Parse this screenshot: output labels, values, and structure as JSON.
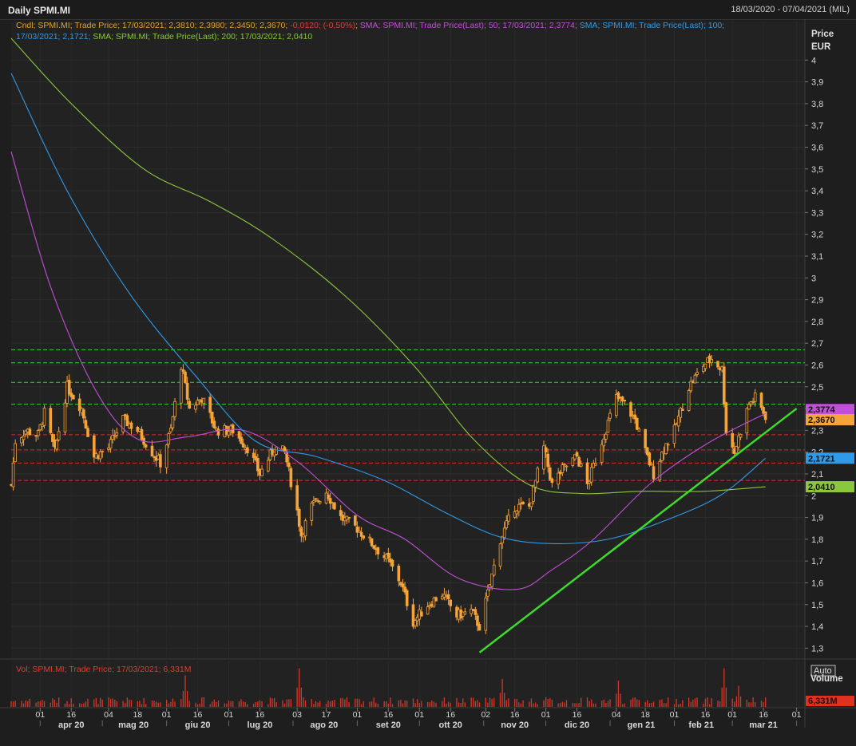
{
  "window": {
    "title": "Daily SPMI.MI",
    "date_range": "18/03/2020 - 07/04/2021 (MIL)"
  },
  "legend": {
    "line1": [
      {
        "text": "Cndl; SPMI.MI; Trade Price;  17/03/2021; 2,3810; 2,3980; 2,3450; 2,3670; ",
        "color": "#e0a030"
      },
      {
        "text": "-0,0120; (-0,50%)",
        "color": "#e03c31"
      },
      {
        "text": "; ",
        "color": "#e0a030"
      },
      {
        "text": "SMA; SPMI.MI; Trade Price(Last);  50;  17/03/2021; 2,3774; ",
        "color": "#c24fd8"
      },
      {
        "text": "SMA; SPMI.MI; Trade Price(Last);  100;",
        "color": "#2f9ae8"
      }
    ],
    "line2": [
      {
        "text": "17/03/2021; 2,1721; ",
        "color": "#2f9ae8"
      },
      {
        "text": "SMA; SPMI.MI; Trade Price(Last);  200;  17/03/2021; 2,0410",
        "color": "#8bc63f"
      }
    ],
    "volume": "Vol; SPMI.MI; Trade Price;  17/03/2021; 6,331M"
  },
  "colors": {
    "candle": "#f5a43a",
    "sma50": "#c24fd8",
    "sma100": "#2f9ae8",
    "sma200": "#8bc63f",
    "trendline": "#3ddc2a",
    "support": "#d03030",
    "resistance": "#3ccf3c",
    "volume": "#d03a2a"
  },
  "chart_data": {
    "type": "line",
    "subtype": "candlestick",
    "price_axis": {
      "label": "Price",
      "unit": "EUR",
      "ylim": [
        1.25,
        4.1
      ],
      "ticks": [
        "1,3",
        "1,4",
        "1,5",
        "1,6",
        "1,7",
        "1,8",
        "1,9",
        "2",
        "2,1",
        "2,2",
        "2,3",
        "2,4",
        "2,5",
        "2,6",
        "2,7",
        "2,8",
        "2,9",
        "3",
        "3,1",
        "3,2",
        "3,3",
        "3,4",
        "3,5",
        "3,6",
        "3,7",
        "3,8",
        "3,9",
        "4"
      ],
      "tick_values": [
        1.3,
        1.4,
        1.5,
        1.6,
        1.7,
        1.8,
        1.9,
        2.0,
        2.1,
        2.2,
        2.3,
        2.4,
        2.5,
        2.6,
        2.7,
        2.8,
        2.9,
        3.0,
        3.1,
        3.2,
        3.3,
        3.4,
        3.5,
        3.6,
        3.7,
        3.8,
        3.9,
        4.0
      ],
      "scale_mode": "Auto"
    },
    "time_axis": {
      "day_ticks": [
        "01",
        "16",
        "04",
        "18",
        "01",
        "16",
        "01",
        "16",
        "03",
        "17",
        "01",
        "16",
        "01",
        "16",
        "02",
        "16",
        "01",
        "16",
        "04",
        "18",
        "01",
        "16",
        "01",
        "16",
        "01"
      ],
      "day_tick_dates": [
        "2020-04-01",
        "2020-04-16",
        "2020-05-04",
        "2020-05-18",
        "2020-06-01",
        "2020-06-16",
        "2020-07-01",
        "2020-07-16",
        "2020-08-03",
        "2020-08-17",
        "2020-09-01",
        "2020-09-16",
        "2020-10-01",
        "2020-10-16",
        "2020-11-02",
        "2020-11-16",
        "2020-12-01",
        "2020-12-16",
        "2021-01-04",
        "2021-01-18",
        "2021-02-01",
        "2021-02-16",
        "2021-03-01",
        "2021-03-16",
        "2021-04-01"
      ],
      "month_labels": [
        "apr 20",
        "mag 20",
        "giu 20",
        "lug 20",
        "ago 20",
        "set 20",
        "ott 20",
        "nov 20",
        "dic 20",
        "gen 21",
        "feb 21",
        "mar 21"
      ],
      "month_label_dates": [
        "2020-04-16",
        "2020-05-16",
        "2020-06-16",
        "2020-07-16",
        "2020-08-16",
        "2020-09-16",
        "2020-10-16",
        "2020-11-16",
        "2020-12-16",
        "2021-01-16",
        "2021-02-14",
        "2021-03-16"
      ]
    },
    "price_path": [
      [
        "2020-03-18",
        2.05
      ],
      [
        "2020-03-20",
        2.25
      ],
      [
        "2020-03-25",
        2.3
      ],
      [
        "2020-03-31",
        2.28
      ],
      [
        "2020-04-03",
        2.38
      ],
      [
        "2020-04-08",
        2.2
      ],
      [
        "2020-04-14",
        2.5
      ],
      [
        "2020-04-21",
        2.4
      ],
      [
        "2020-04-27",
        2.18
      ],
      [
        "2020-05-04",
        2.22
      ],
      [
        "2020-05-11",
        2.35
      ],
      [
        "2020-05-18",
        2.3
      ],
      [
        "2020-05-25",
        2.2
      ],
      [
        "2020-05-29",
        2.15
      ],
      [
        "2020-06-03",
        2.3
      ],
      [
        "2020-06-08",
        2.6
      ],
      [
        "2020-06-12",
        2.4
      ],
      [
        "2020-06-18",
        2.45
      ],
      [
        "2020-06-25",
        2.3
      ],
      [
        "2020-07-03",
        2.3
      ],
      [
        "2020-07-10",
        2.22
      ],
      [
        "2020-07-16",
        2.1
      ],
      [
        "2020-07-23",
        2.22
      ],
      [
        "2020-07-28",
        2.2
      ],
      [
        "2020-08-03",
        1.93
      ],
      [
        "2020-08-05",
        1.82
      ],
      [
        "2020-08-10",
        1.95
      ],
      [
        "2020-08-17",
        2.02
      ],
      [
        "2020-08-24",
        1.9
      ],
      [
        "2020-09-01",
        1.85
      ],
      [
        "2020-09-08",
        1.78
      ],
      [
        "2020-09-16",
        1.7
      ],
      [
        "2020-09-22",
        1.6
      ],
      [
        "2020-09-28",
        1.42
      ],
      [
        "2020-10-05",
        1.5
      ],
      [
        "2020-10-12",
        1.55
      ],
      [
        "2020-10-19",
        1.45
      ],
      [
        "2020-10-26",
        1.47
      ],
      [
        "2020-10-30",
        1.4
      ],
      [
        "2020-11-03",
        1.55
      ],
      [
        "2020-11-09",
        1.8
      ],
      [
        "2020-11-16",
        1.95
      ],
      [
        "2020-11-23",
        1.95
      ],
      [
        "2020-11-30",
        2.22
      ],
      [
        "2020-12-04",
        2.05
      ],
      [
        "2020-12-09",
        2.12
      ],
      [
        "2020-12-16",
        2.18
      ],
      [
        "2020-12-21",
        2.05
      ],
      [
        "2020-12-28",
        2.25
      ],
      [
        "2021-01-04",
        2.45
      ],
      [
        "2021-01-08",
        2.42
      ],
      [
        "2021-01-13",
        2.35
      ],
      [
        "2021-01-18",
        2.2
      ],
      [
        "2021-01-22",
        2.1
      ],
      [
        "2021-01-27",
        2.22
      ],
      [
        "2021-02-01",
        2.3
      ],
      [
        "2021-02-08",
        2.5
      ],
      [
        "2021-02-15",
        2.6
      ],
      [
        "2021-02-19",
        2.63
      ],
      [
        "2021-02-24",
        2.58
      ],
      [
        "2021-02-26",
        2.3
      ],
      [
        "2021-03-02",
        2.2
      ],
      [
        "2021-03-05",
        2.3
      ],
      [
        "2021-03-09",
        2.42
      ],
      [
        "2021-03-12",
        2.45
      ],
      [
        "2021-03-17",
        2.367
      ]
    ],
    "series": [
      {
        "name": "SMA 50",
        "x": [
          "2020-03-18",
          "2020-04-06",
          "2020-04-28",
          "2020-05-18",
          "2020-06-11",
          "2020-07-08",
          "2020-08-04",
          "2020-09-01",
          "2020-09-24",
          "2020-10-20",
          "2020-11-17",
          "2020-12-04",
          "2020-12-24",
          "2021-01-21",
          "2021-02-17",
          "2021-03-17"
        ],
        "values": [
          3.58,
          2.96,
          2.48,
          2.26,
          2.27,
          2.3,
          2.15,
          1.91,
          1.8,
          1.62,
          1.57,
          1.66,
          1.8,
          2.06,
          2.24,
          2.3774
        ]
      },
      {
        "name": "SMA 100",
        "x": [
          "2020-03-18",
          "2020-04-14",
          "2020-05-14",
          "2020-06-15",
          "2020-07-14",
          "2020-08-12",
          "2020-09-14",
          "2020-10-14",
          "2020-11-09",
          "2020-12-04",
          "2020-12-31",
          "2021-01-26",
          "2021-02-23",
          "2021-03-17"
        ],
        "values": [
          3.94,
          3.4,
          2.93,
          2.55,
          2.25,
          2.18,
          2.07,
          1.92,
          1.81,
          1.78,
          1.8,
          1.88,
          2.0,
          2.1721
        ]
      },
      {
        "name": "SMA 200",
        "x": [
          "2020-03-18",
          "2020-04-16",
          "2020-05-21",
          "2020-06-22",
          "2020-07-22",
          "2020-08-27",
          "2020-09-29",
          "2020-10-27",
          "2020-11-23",
          "2020-12-18",
          "2021-01-15",
          "2021-02-15",
          "2021-03-17"
        ],
        "values": [
          4.1,
          3.8,
          3.5,
          3.35,
          3.18,
          2.91,
          2.59,
          2.26,
          2.05,
          2.01,
          2.02,
          2.02,
          2.041
        ]
      }
    ],
    "trendline": {
      "from": [
        "2020-10-30",
        1.28
      ],
      "to": [
        "2021-04-01",
        2.4
      ]
    },
    "horizontal_levels": {
      "resistance": [
        2.67,
        2.61,
        2.52,
        2.42
      ],
      "support": [
        2.28,
        2.21,
        2.15,
        2.07
      ]
    },
    "price_labels": [
      {
        "name": "SMA 50",
        "text": "2,3774",
        "value": 2.3774,
        "color": "#c24fd8"
      },
      {
        "name": "Candle Last",
        "text": "2,3670",
        "value": 2.367,
        "color": "#f5a43a"
      },
      {
        "name": "SMA 100",
        "text": "2,1721",
        "value": 2.1721,
        "color": "#2f9ae8"
      },
      {
        "name": "SMA 200",
        "text": "2,0410",
        "value": 2.041,
        "color": "#8bc63f"
      }
    ],
    "volume": {
      "label": "Volume",
      "last": "6,331M",
      "last_value": 6.331,
      "peaks": [
        [
          "2020-06-10",
          18
        ],
        [
          "2020-08-04",
          22
        ],
        [
          "2020-11-10",
          16
        ],
        [
          "2021-01-05",
          15
        ],
        [
          "2021-02-25",
          22
        ],
        [
          "2021-03-04",
          12
        ]
      ]
    }
  }
}
